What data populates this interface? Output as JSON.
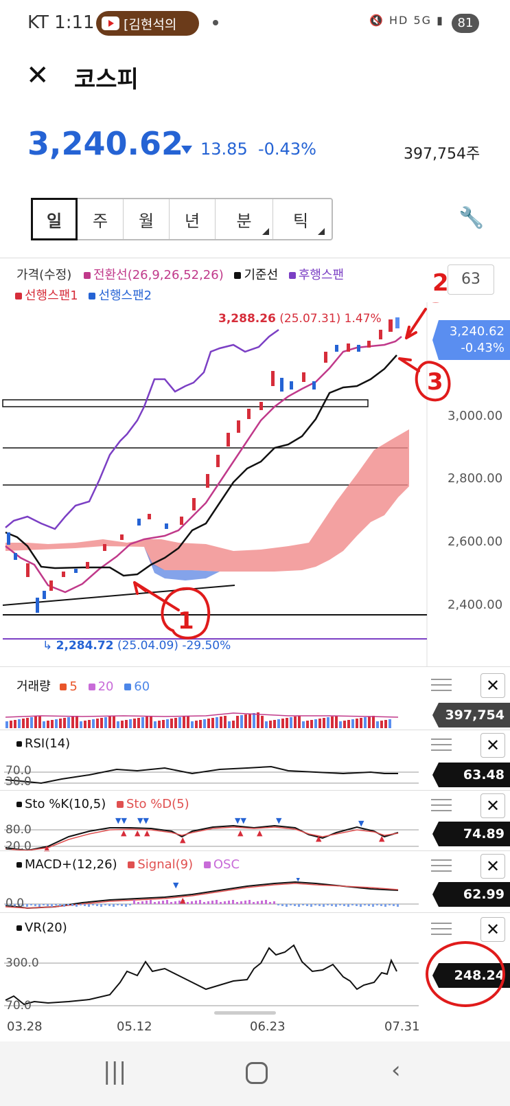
{
  "status_bar": {
    "carrier_time": "KT 1:11",
    "notification": "[김현석의",
    "icons": "🔇 HD 5G ▮",
    "battery": "81"
  },
  "header": {
    "title": "코스피",
    "close_icon": "close-icon"
  },
  "quote": {
    "price": "3,240.62",
    "change": "13.85",
    "change_pct": "-0.43%",
    "volume": "397,754주",
    "direction": "down",
    "down_color": "#2563d4",
    "up_color": "#d62d3a"
  },
  "period_tabs": [
    {
      "label": "일",
      "selected": true
    },
    {
      "label": "주"
    },
    {
      "label": "월"
    },
    {
      "label": "년"
    },
    {
      "label": "분",
      "has_submenu": true
    },
    {
      "label": "틱",
      "has_submenu": true
    }
  ],
  "main_chart": {
    "legend": {
      "price": "가격(수정)",
      "conv": "전환선(26,9,26,52,26)",
      "base": "기준선",
      "lag": "후행스팬",
      "lead1": "선행스팬1",
      "lead2": "선행스팬2"
    },
    "side_value": "63",
    "high_label": "3,288.26",
    "high_date": "(25.07.31) 1.47%",
    "low_label": "2,284.72",
    "low_date": "(25.04.09) -29.50%",
    "price_tag": "3,240.62",
    "price_tag_pct": "-0.43%",
    "y_ticks": [
      "3,000.00",
      "2,800.00",
      "2,600.00",
      "2,400.00"
    ],
    "annotations": [
      "1",
      "2",
      "3"
    ]
  },
  "volume_panel": {
    "label": "거래량",
    "ma": [
      "5",
      "20",
      "60"
    ],
    "value": "397,754"
  },
  "panels": [
    {
      "id": "rsi",
      "label": "RSI(14)",
      "value": "63.48",
      "levels": [
        "70.0",
        "30.0"
      ]
    },
    {
      "id": "sto",
      "label": "Sto %K(10,5)",
      "label2": "Sto %D(5)",
      "value": "74.89",
      "levels": [
        "80.0",
        "20.0"
      ]
    },
    {
      "id": "macd",
      "label": "MACD+(12,26)",
      "label2": "Signal(9)",
      "label3": "OSC",
      "value": "62.99",
      "levels": [
        "0.0"
      ]
    },
    {
      "id": "vr",
      "label": "VR(20)",
      "value": "248.24",
      "levels": [
        "300.0",
        "70.0"
      ]
    }
  ],
  "x_ticks": [
    "03.28",
    "05.12",
    "06.23",
    "07.31"
  ],
  "colors": {
    "accent_blue": "#2563d4",
    "red": "#d62d3a",
    "purple": "#7b3fc4",
    "magenta": "#c0398a",
    "cloud_red": "#f08a8a",
    "cloud_blue": "#6f93e6",
    "annotation_red": "#e01b1b"
  },
  "nav": [
    "recents-icon",
    "home-icon",
    "back-icon"
  ]
}
